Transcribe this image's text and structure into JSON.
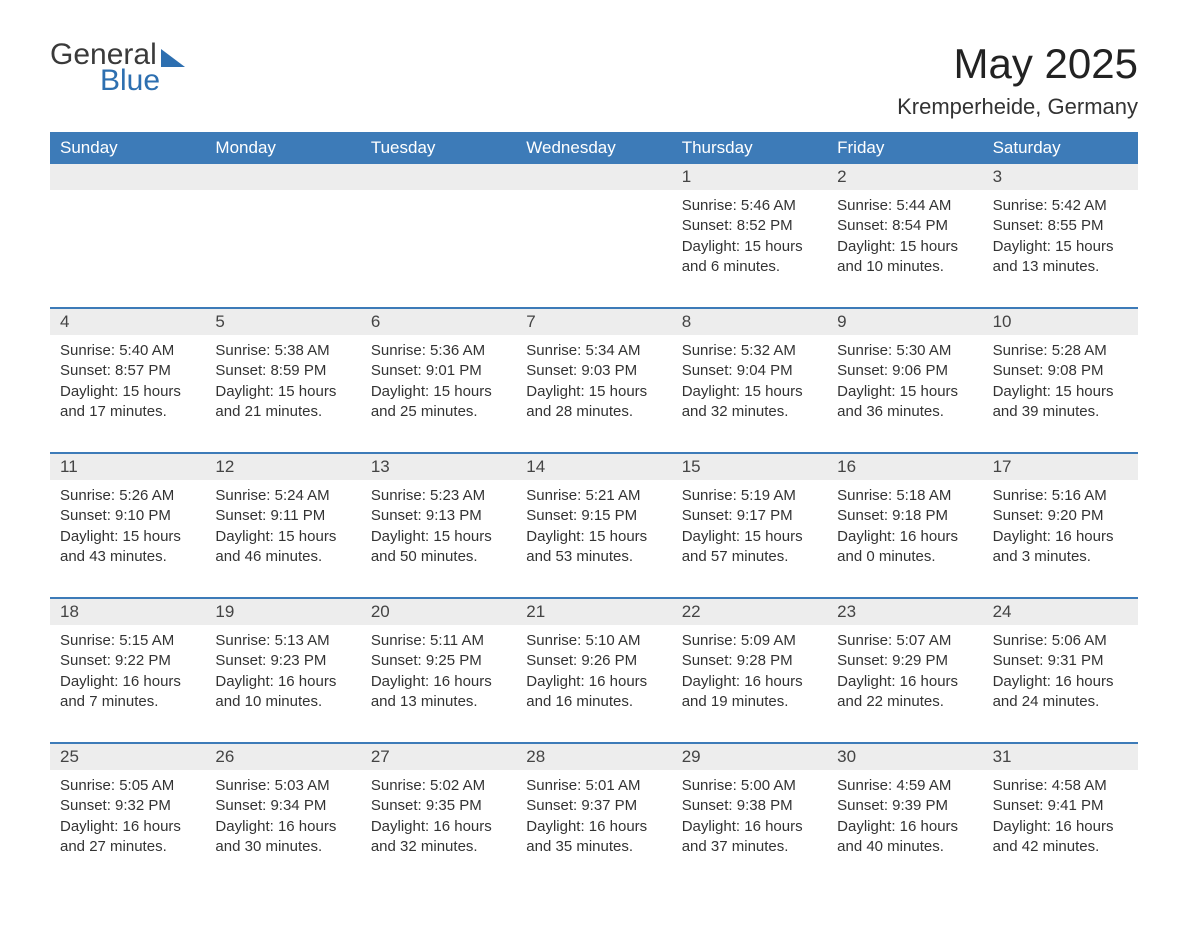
{
  "logo": {
    "text1": "General",
    "text2": "Blue"
  },
  "title": "May 2025",
  "location": "Kremperheide, Germany",
  "header_bg": "#3d7bb8",
  "header_fg": "#ffffff",
  "daynum_bg": "#ededed",
  "text_color": "#333333",
  "accent_color": "#2d6fb0",
  "days_of_week": [
    "Sunday",
    "Monday",
    "Tuesday",
    "Wednesday",
    "Thursday",
    "Friday",
    "Saturday"
  ],
  "weeks": [
    [
      {
        "n": "",
        "sunrise": "",
        "sunset": "",
        "daylight": ""
      },
      {
        "n": "",
        "sunrise": "",
        "sunset": "",
        "daylight": ""
      },
      {
        "n": "",
        "sunrise": "",
        "sunset": "",
        "daylight": ""
      },
      {
        "n": "",
        "sunrise": "",
        "sunset": "",
        "daylight": ""
      },
      {
        "n": "1",
        "sunrise": "Sunrise: 5:46 AM",
        "sunset": "Sunset: 8:52 PM",
        "daylight": "Daylight: 15 hours and 6 minutes."
      },
      {
        "n": "2",
        "sunrise": "Sunrise: 5:44 AM",
        "sunset": "Sunset: 8:54 PM",
        "daylight": "Daylight: 15 hours and 10 minutes."
      },
      {
        "n": "3",
        "sunrise": "Sunrise: 5:42 AM",
        "sunset": "Sunset: 8:55 PM",
        "daylight": "Daylight: 15 hours and 13 minutes."
      }
    ],
    [
      {
        "n": "4",
        "sunrise": "Sunrise: 5:40 AM",
        "sunset": "Sunset: 8:57 PM",
        "daylight": "Daylight: 15 hours and 17 minutes."
      },
      {
        "n": "5",
        "sunrise": "Sunrise: 5:38 AM",
        "sunset": "Sunset: 8:59 PM",
        "daylight": "Daylight: 15 hours and 21 minutes."
      },
      {
        "n": "6",
        "sunrise": "Sunrise: 5:36 AM",
        "sunset": "Sunset: 9:01 PM",
        "daylight": "Daylight: 15 hours and 25 minutes."
      },
      {
        "n": "7",
        "sunrise": "Sunrise: 5:34 AM",
        "sunset": "Sunset: 9:03 PM",
        "daylight": "Daylight: 15 hours and 28 minutes."
      },
      {
        "n": "8",
        "sunrise": "Sunrise: 5:32 AM",
        "sunset": "Sunset: 9:04 PM",
        "daylight": "Daylight: 15 hours and 32 minutes."
      },
      {
        "n": "9",
        "sunrise": "Sunrise: 5:30 AM",
        "sunset": "Sunset: 9:06 PM",
        "daylight": "Daylight: 15 hours and 36 minutes."
      },
      {
        "n": "10",
        "sunrise": "Sunrise: 5:28 AM",
        "sunset": "Sunset: 9:08 PM",
        "daylight": "Daylight: 15 hours and 39 minutes."
      }
    ],
    [
      {
        "n": "11",
        "sunrise": "Sunrise: 5:26 AM",
        "sunset": "Sunset: 9:10 PM",
        "daylight": "Daylight: 15 hours and 43 minutes."
      },
      {
        "n": "12",
        "sunrise": "Sunrise: 5:24 AM",
        "sunset": "Sunset: 9:11 PM",
        "daylight": "Daylight: 15 hours and 46 minutes."
      },
      {
        "n": "13",
        "sunrise": "Sunrise: 5:23 AM",
        "sunset": "Sunset: 9:13 PM",
        "daylight": "Daylight: 15 hours and 50 minutes."
      },
      {
        "n": "14",
        "sunrise": "Sunrise: 5:21 AM",
        "sunset": "Sunset: 9:15 PM",
        "daylight": "Daylight: 15 hours and 53 minutes."
      },
      {
        "n": "15",
        "sunrise": "Sunrise: 5:19 AM",
        "sunset": "Sunset: 9:17 PM",
        "daylight": "Daylight: 15 hours and 57 minutes."
      },
      {
        "n": "16",
        "sunrise": "Sunrise: 5:18 AM",
        "sunset": "Sunset: 9:18 PM",
        "daylight": "Daylight: 16 hours and 0 minutes."
      },
      {
        "n": "17",
        "sunrise": "Sunrise: 5:16 AM",
        "sunset": "Sunset: 9:20 PM",
        "daylight": "Daylight: 16 hours and 3 minutes."
      }
    ],
    [
      {
        "n": "18",
        "sunrise": "Sunrise: 5:15 AM",
        "sunset": "Sunset: 9:22 PM",
        "daylight": "Daylight: 16 hours and 7 minutes."
      },
      {
        "n": "19",
        "sunrise": "Sunrise: 5:13 AM",
        "sunset": "Sunset: 9:23 PM",
        "daylight": "Daylight: 16 hours and 10 minutes."
      },
      {
        "n": "20",
        "sunrise": "Sunrise: 5:11 AM",
        "sunset": "Sunset: 9:25 PM",
        "daylight": "Daylight: 16 hours and 13 minutes."
      },
      {
        "n": "21",
        "sunrise": "Sunrise: 5:10 AM",
        "sunset": "Sunset: 9:26 PM",
        "daylight": "Daylight: 16 hours and 16 minutes."
      },
      {
        "n": "22",
        "sunrise": "Sunrise: 5:09 AM",
        "sunset": "Sunset: 9:28 PM",
        "daylight": "Daylight: 16 hours and 19 minutes."
      },
      {
        "n": "23",
        "sunrise": "Sunrise: 5:07 AM",
        "sunset": "Sunset: 9:29 PM",
        "daylight": "Daylight: 16 hours and 22 minutes."
      },
      {
        "n": "24",
        "sunrise": "Sunrise: 5:06 AM",
        "sunset": "Sunset: 9:31 PM",
        "daylight": "Daylight: 16 hours and 24 minutes."
      }
    ],
    [
      {
        "n": "25",
        "sunrise": "Sunrise: 5:05 AM",
        "sunset": "Sunset: 9:32 PM",
        "daylight": "Daylight: 16 hours and 27 minutes."
      },
      {
        "n": "26",
        "sunrise": "Sunrise: 5:03 AM",
        "sunset": "Sunset: 9:34 PM",
        "daylight": "Daylight: 16 hours and 30 minutes."
      },
      {
        "n": "27",
        "sunrise": "Sunrise: 5:02 AM",
        "sunset": "Sunset: 9:35 PM",
        "daylight": "Daylight: 16 hours and 32 minutes."
      },
      {
        "n": "28",
        "sunrise": "Sunrise: 5:01 AM",
        "sunset": "Sunset: 9:37 PM",
        "daylight": "Daylight: 16 hours and 35 minutes."
      },
      {
        "n": "29",
        "sunrise": "Sunrise: 5:00 AM",
        "sunset": "Sunset: 9:38 PM",
        "daylight": "Daylight: 16 hours and 37 minutes."
      },
      {
        "n": "30",
        "sunrise": "Sunrise: 4:59 AM",
        "sunset": "Sunset: 9:39 PM",
        "daylight": "Daylight: 16 hours and 40 minutes."
      },
      {
        "n": "31",
        "sunrise": "Sunrise: 4:58 AM",
        "sunset": "Sunset: 9:41 PM",
        "daylight": "Daylight: 16 hours and 42 minutes."
      }
    ]
  ]
}
